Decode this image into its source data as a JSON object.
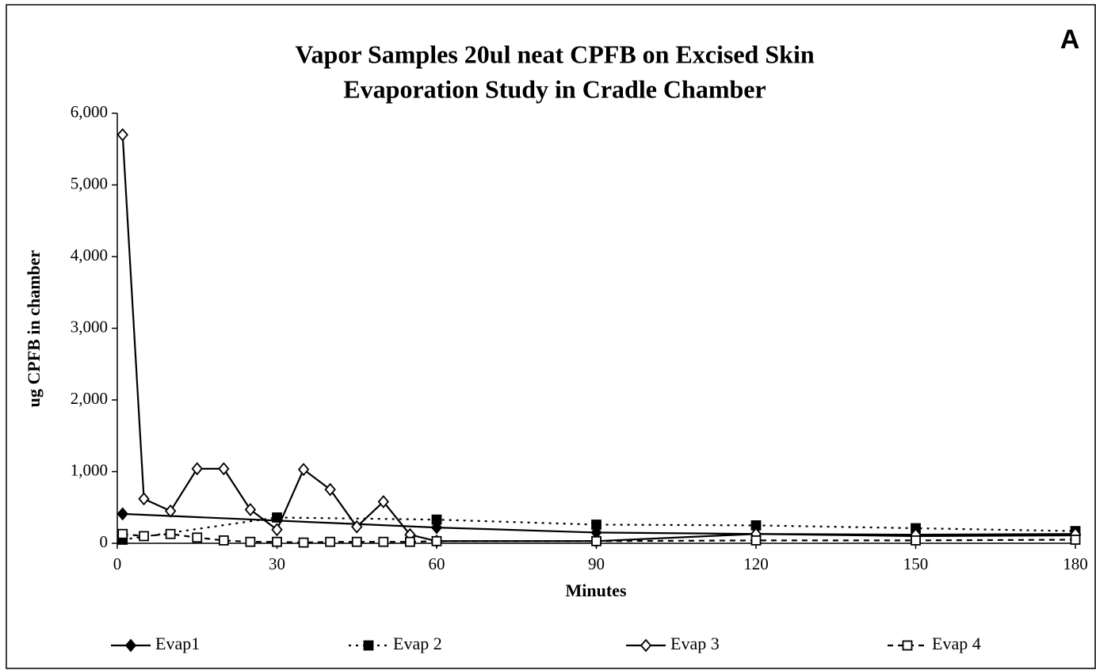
{
  "chart_data": {
    "type": "line",
    "title": "Vapor Samples 20ul neat CPFB on Excised Skin",
    "subtitle": "Evaporation Study in Cradle Chamber",
    "annotation": "A",
    "x_label": "Minutes",
    "y_label": "ug CPFB in chamber",
    "xlim": [
      0,
      180
    ],
    "xticks": [
      0,
      30,
      60,
      90,
      120,
      150,
      180
    ],
    "ylim": [
      0,
      6000
    ],
    "yticks": [
      0,
      {
        "value": 1000,
        "label": "1,000"
      },
      {
        "value": 2000,
        "label": "2,000"
      },
      {
        "value": 3000,
        "label": "3,000"
      },
      {
        "value": 4000,
        "label": "4,000"
      },
      {
        "value": 5000,
        "label": "5,000"
      },
      {
        "value": 6000,
        "label": "6,000"
      }
    ],
    "grid": false,
    "legend": "bottom",
    "series": [
      {
        "name": "Evap1",
        "color": "#000000",
        "marker": "diamond",
        "filled": true,
        "dash": "solid",
        "x": [
          1,
          60,
          90,
          120,
          150,
          180
        ],
        "values": [
          410,
          220,
          150,
          130,
          100,
          110
        ]
      },
      {
        "name": "Evap 2",
        "color": "#000000",
        "marker": "square",
        "filled": true,
        "dash": "dotted",
        "x": [
          1,
          30,
          60,
          90,
          120,
          150,
          180
        ],
        "values": [
          50,
          360,
          330,
          260,
          250,
          210,
          170
        ]
      },
      {
        "name": "Evap 3",
        "color": "#000000",
        "marker": "diamond",
        "filled": false,
        "dash": "solid",
        "x": [
          1,
          5,
          10,
          15,
          20,
          25,
          30,
          35,
          40,
          45,
          50,
          55,
          60,
          90,
          120,
          150,
          180
        ],
        "values": [
          5700,
          620,
          450,
          1040,
          1040,
          470,
          190,
          1030,
          750,
          230,
          580,
          120,
          30,
          30,
          130,
          120,
          130
        ]
      },
      {
        "name": "Evap 4",
        "color": "#000000",
        "marker": "square",
        "filled": false,
        "dash": "dashed",
        "x": [
          1,
          5,
          10,
          15,
          20,
          25,
          30,
          35,
          40,
          45,
          50,
          55,
          60,
          90,
          120,
          150,
          180
        ],
        "values": [
          130,
          100,
          130,
          80,
          40,
          20,
          20,
          10,
          20,
          20,
          20,
          20,
          30,
          30,
          40,
          40,
          50
        ]
      }
    ]
  }
}
